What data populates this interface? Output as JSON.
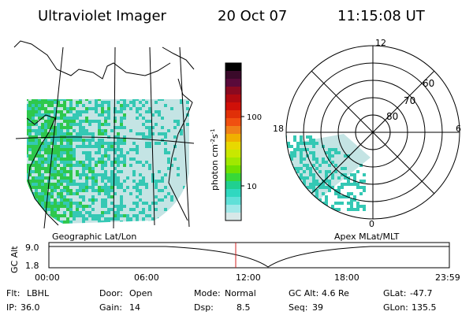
{
  "header": {
    "title": "Ultraviolet Imager",
    "date": "20 Oct 07",
    "time": "11:15:08 UT"
  },
  "colorbar": {
    "label": "photon cm",
    "label_sup1": "-2",
    "label_mid": "s",
    "label_sup2": "-1",
    "ticks": [
      "100",
      "10"
    ],
    "colors": [
      "#000000",
      "#3a0a2a",
      "#5a0a3a",
      "#8a0a20",
      "#b00a10",
      "#d01008",
      "#e03008",
      "#f05010",
      "#f08018",
      "#f0b000",
      "#e8d800",
      "#c8e800",
      "#a0e800",
      "#70e000",
      "#38d838",
      "#20d090",
      "#30d8c0",
      "#60e0d8",
      "#a0e8e8",
      "#d8e8e8"
    ]
  },
  "map_left": {
    "caption": "Geographic Lat/Lon",
    "colors": {
      "green": "#2ec84c",
      "teal": "#34c8b4",
      "light": "#c4e4e4"
    }
  },
  "polar_right": {
    "caption": "Apex MLat/MLT",
    "mlt_labels": {
      "top": "12",
      "left": "18",
      "right": "6",
      "bottom": "0"
    },
    "mlat_labels": [
      "60",
      "70",
      "80"
    ]
  },
  "timeline": {
    "ylabel": "GC Alt",
    "yticks": [
      "9.0",
      "1.8"
    ],
    "xticks": [
      "00:00",
      "06:00",
      "12:00",
      "18:00",
      "23:59"
    ],
    "current_time_color": "#d02020"
  },
  "status": {
    "row1": [
      {
        "label": "Flt:",
        "value": "LBHL"
      },
      {
        "label": "Door:",
        "value": "Open"
      },
      {
        "label": "Mode:",
        "value": "Normal"
      },
      {
        "label": "GC Alt:",
        "value": "4.6 Re"
      },
      {
        "label": "GLat:",
        "value": "-47.7"
      }
    ],
    "row2": [
      {
        "label": "IP:",
        "value": "36.0"
      },
      {
        "label": "Gain:",
        "value": "14"
      },
      {
        "label": "Dsp:",
        "value": "8.5"
      },
      {
        "label": "Seq:",
        "value": "39"
      },
      {
        "label": "GLon:",
        "value": "135.5"
      }
    ]
  }
}
